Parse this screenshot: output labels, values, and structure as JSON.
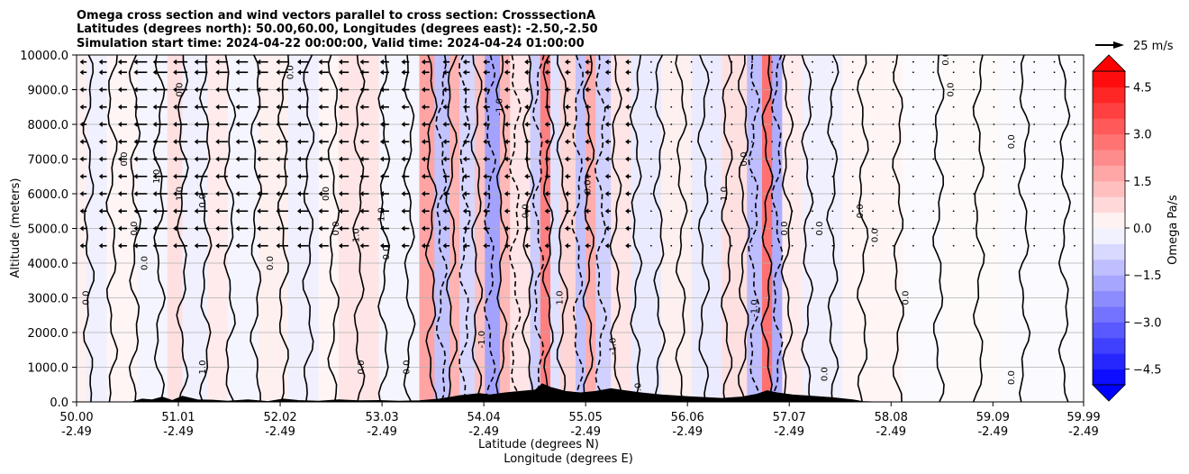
{
  "chart_data": {
    "type": "heatmap",
    "title_lines": [
      "Omega cross section and wind vectors parallel to cross section: CrosssectionA",
      "Latitudes (degrees north): 50.00,60.00, Longitudes (degrees east): -2.50,-2.50",
      "Simulation start time: 2024-04-22 00:00:00, Valid time: 2024-04-24 01:00:00"
    ],
    "xlabel_1": "Latitude (degrees N)",
    "xlabel_2": "Longitude (degrees E)",
    "ylabel": "Altitude (meters)",
    "xlim": [
      50.0,
      59.99
    ],
    "ylim": [
      0,
      10000
    ],
    "x_ticks": [
      {
        "lat": "50.00",
        "lon": "-2.49",
        "v": 50.0
      },
      {
        "lat": "51.01",
        "lon": "-2.49",
        "v": 51.01
      },
      {
        "lat": "52.02",
        "lon": "-2.49",
        "v": 52.02
      },
      {
        "lat": "53.03",
        "lon": "-2.49",
        "v": 53.03
      },
      {
        "lat": "54.04",
        "lon": "-2.49",
        "v": 54.04
      },
      {
        "lat": "55.05",
        "lon": "-2.49",
        "v": 55.05
      },
      {
        "lat": "56.06",
        "lon": "-2.49",
        "v": 56.06
      },
      {
        "lat": "57.07",
        "lon": "-2.49",
        "v": 57.07
      },
      {
        "lat": "58.08",
        "lon": "-2.49",
        "v": 58.08
      },
      {
        "lat": "59.09",
        "lon": "-2.49",
        "v": 59.09
      },
      {
        "lat": "59.99",
        "lon": "-2.49",
        "v": 59.99
      }
    ],
    "y_ticks": [
      {
        "label": "0.0",
        "v": 0
      },
      {
        "label": "1000.0",
        "v": 1000
      },
      {
        "label": "2000.0",
        "v": 2000
      },
      {
        "label": "3000.0",
        "v": 3000
      },
      {
        "label": "4000.0",
        "v": 4000
      },
      {
        "label": "5000.0",
        "v": 5000
      },
      {
        "label": "6000.0",
        "v": 6000
      },
      {
        "label": "7000.0",
        "v": 7000
      },
      {
        "label": "8000.0",
        "v": 8000
      },
      {
        "label": "9000.0",
        "v": 9000
      },
      {
        "label": "10000.0",
        "v": 10000
      }
    ],
    "grid": "horizontal",
    "colorbar": {
      "label": "Omega Pa/s",
      "range": [
        -5.0,
        5.0
      ],
      "ticks": [
        {
          "label": "4.5",
          "v": 4.5
        },
        {
          "label": "3.0",
          "v": 3.0
        },
        {
          "label": "1.5",
          "v": 1.5
        },
        {
          "label": "0.0",
          "v": 0.0
        },
        {
          "label": "−1.5",
          "v": -1.5
        },
        {
          "label": "−3.0",
          "v": -3.0
        },
        {
          "label": "−4.5",
          "v": -4.5
        }
      ],
      "extend": "both"
    },
    "reference_vector": {
      "label": "25 m/s",
      "speed": 25
    },
    "bands": [
      {
        "x0": 50.0,
        "x1": 50.1,
        "v": 0.3
      },
      {
        "x0": 50.1,
        "x1": 50.3,
        "v": -0.3
      },
      {
        "x0": 50.3,
        "x1": 50.6,
        "v": 0.2
      },
      {
        "x0": 50.6,
        "x1": 50.9,
        "v": -0.2
      },
      {
        "x0": 50.9,
        "x1": 51.05,
        "v": 0.6
      },
      {
        "x0": 51.05,
        "x1": 51.3,
        "v": -0.3
      },
      {
        "x0": 51.3,
        "x1": 51.5,
        "v": 0.4
      },
      {
        "x0": 51.5,
        "x1": 51.8,
        "v": -0.2
      },
      {
        "x0": 51.8,
        "x1": 52.1,
        "v": 0.3
      },
      {
        "x0": 52.1,
        "x1": 52.4,
        "v": -0.3
      },
      {
        "x0": 52.4,
        "x1": 52.6,
        "v": 0.2
      },
      {
        "x0": 52.6,
        "x1": 53.0,
        "v": 0.5
      },
      {
        "x0": 53.0,
        "x1": 53.4,
        "v": -0.2
      },
      {
        "x0": 53.4,
        "x1": 53.55,
        "v": 1.8
      },
      {
        "x0": 53.55,
        "x1": 53.7,
        "v": -1.2
      },
      {
        "x0": 53.7,
        "x1": 53.8,
        "v": 1.5
      },
      {
        "x0": 53.8,
        "x1": 53.95,
        "v": -0.8
      },
      {
        "x0": 53.95,
        "x1": 54.05,
        "v": 1.2
      },
      {
        "x0": 54.05,
        "x1": 54.2,
        "v": -1.8
      },
      {
        "x0": 54.2,
        "x1": 54.3,
        "v": 1.4
      },
      {
        "x0": 54.3,
        "x1": 54.5,
        "v": 0.5
      },
      {
        "x0": 54.5,
        "x1": 54.6,
        "v": -1.0
      },
      {
        "x0": 54.6,
        "x1": 54.7,
        "v": 2.5
      },
      {
        "x0": 54.7,
        "x1": 54.8,
        "v": -0.6
      },
      {
        "x0": 54.8,
        "x1": 54.95,
        "v": 0.8
      },
      {
        "x0": 54.95,
        "x1": 55.05,
        "v": -1.2
      },
      {
        "x0": 55.05,
        "x1": 55.15,
        "v": 1.6
      },
      {
        "x0": 55.15,
        "x1": 55.3,
        "v": -0.9
      },
      {
        "x0": 55.3,
        "x1": 55.5,
        "v": 0.5
      },
      {
        "x0": 55.5,
        "x1": 55.8,
        "v": -0.4
      },
      {
        "x0": 55.8,
        "x1": 56.1,
        "v": 0.3
      },
      {
        "x0": 56.1,
        "x1": 56.4,
        "v": -0.4
      },
      {
        "x0": 56.4,
        "x1": 56.65,
        "v": 0.6
      },
      {
        "x0": 56.65,
        "x1": 56.8,
        "v": -1.3
      },
      {
        "x0": 56.8,
        "x1": 56.9,
        "v": 2.8
      },
      {
        "x0": 56.9,
        "x1": 57.0,
        "v": -1.6
      },
      {
        "x0": 57.0,
        "x1": 57.2,
        "v": 0.4
      },
      {
        "x0": 57.2,
        "x1": 57.6,
        "v": -0.3
      },
      {
        "x0": 57.6,
        "x1": 58.2,
        "v": 0.2
      },
      {
        "x0": 58.2,
        "x1": 58.6,
        "v": -0.1
      },
      {
        "x0": 58.6,
        "x1": 59.2,
        "v": 0.1
      },
      {
        "x0": 59.2,
        "x1": 59.99,
        "v": -0.1
      }
    ],
    "contours": [
      {
        "x": 50.12,
        "style": "solid"
      },
      {
        "x": 50.35,
        "style": "solid"
      },
      {
        "x": 50.58,
        "style": "solid"
      },
      {
        "x": 50.82,
        "style": "solid"
      },
      {
        "x": 51.05,
        "style": "solid"
      },
      {
        "x": 51.28,
        "style": "solid"
      },
      {
        "x": 51.52,
        "style": "solid"
      },
      {
        "x": 51.78,
        "style": "solid"
      },
      {
        "x": 52.05,
        "style": "solid"
      },
      {
        "x": 52.3,
        "style": "solid"
      },
      {
        "x": 52.55,
        "style": "solid"
      },
      {
        "x": 52.8,
        "style": "solid"
      },
      {
        "x": 53.05,
        "style": "solid"
      },
      {
        "x": 53.3,
        "style": "solid"
      },
      {
        "x": 53.52,
        "style": "solid"
      },
      {
        "x": 53.62,
        "style": "dashed"
      },
      {
        "x": 53.72,
        "style": "solid"
      },
      {
        "x": 53.85,
        "style": "dashed"
      },
      {
        "x": 53.97,
        "style": "solid"
      },
      {
        "x": 54.1,
        "style": "dashed"
      },
      {
        "x": 54.22,
        "style": "solid"
      },
      {
        "x": 54.35,
        "style": "dashed"
      },
      {
        "x": 54.48,
        "style": "solid"
      },
      {
        "x": 54.58,
        "style": "dashed"
      },
      {
        "x": 54.68,
        "style": "solid"
      },
      {
        "x": 54.82,
        "style": "solid"
      },
      {
        "x": 54.97,
        "style": "dashed"
      },
      {
        "x": 55.08,
        "style": "solid"
      },
      {
        "x": 55.2,
        "style": "dashed"
      },
      {
        "x": 55.35,
        "style": "solid"
      },
      {
        "x": 55.55,
        "style": "solid"
      },
      {
        "x": 55.78,
        "style": "solid"
      },
      {
        "x": 56.0,
        "style": "solid"
      },
      {
        "x": 56.22,
        "style": "solid"
      },
      {
        "x": 56.45,
        "style": "solid"
      },
      {
        "x": 56.62,
        "style": "solid"
      },
      {
        "x": 56.72,
        "style": "dashed"
      },
      {
        "x": 56.85,
        "style": "solid"
      },
      {
        "x": 56.95,
        "style": "dashed"
      },
      {
        "x": 57.05,
        "style": "solid"
      },
      {
        "x": 57.25,
        "style": "solid"
      },
      {
        "x": 57.5,
        "style": "solid"
      },
      {
        "x": 57.8,
        "style": "solid"
      },
      {
        "x": 58.15,
        "style": "solid"
      },
      {
        "x": 58.55,
        "style": "solid"
      },
      {
        "x": 58.95,
        "style": "solid"
      },
      {
        "x": 59.4,
        "style": "solid"
      },
      {
        "x": 59.8,
        "style": "solid"
      }
    ],
    "contour_labels": [
      {
        "text": "0.0",
        "x": 50.12,
        "y": 3000
      },
      {
        "text": "0.0",
        "x": 50.5,
        "y": 7000
      },
      {
        "text": "1.0",
        "x": 50.82,
        "y": 6500
      },
      {
        "text": "0.0",
        "x": 50.6,
        "y": 5000
      },
      {
        "text": "0.0",
        "x": 50.7,
        "y": 4000
      },
      {
        "text": "1.0",
        "x": 51.05,
        "y": 6000
      },
      {
        "text": "0.0",
        "x": 51.28,
        "y": 5800
      },
      {
        "text": "0.0",
        "x": 51.05,
        "y": 9000
      },
      {
        "text": "1.0",
        "x": 51.28,
        "y": 1000
      },
      {
        "text": "0.0",
        "x": 51.95,
        "y": 4000
      },
      {
        "text": "0.0",
        "x": 52.15,
        "y": 9500
      },
      {
        "text": "0.0",
        "x": 52.5,
        "y": 6000
      },
      {
        "text": "0.0",
        "x": 52.6,
        "y": 5000
      },
      {
        "text": "1.0",
        "x": 52.8,
        "y": 4800
      },
      {
        "text": "1.0",
        "x": 53.05,
        "y": 5400
      },
      {
        "text": "0.0",
        "x": 53.1,
        "y": 4300
      },
      {
        "text": "0.0",
        "x": 53.3,
        "y": 1000
      },
      {
        "text": "-1.0",
        "x": 54.05,
        "y": 1800
      },
      {
        "text": "-1.0",
        "x": 54.22,
        "y": 8500
      },
      {
        "text": "0.0",
        "x": 54.48,
        "y": 5500
      },
      {
        "text": "1.0",
        "x": 54.82,
        "y": 3000
      },
      {
        "text": "0.0",
        "x": 55.1,
        "y": 6200
      },
      {
        "text": "-1.0",
        "x": 55.35,
        "y": 1600
      },
      {
        "text": "-1.0",
        "x": 55.6,
        "y": 300
      },
      {
        "text": "1.0",
        "x": 56.45,
        "y": 6000
      },
      {
        "text": "0.0",
        "x": 56.65,
        "y": 7000
      },
      {
        "text": "-1.0",
        "x": 56.75,
        "y": 2700
      },
      {
        "text": "0.0",
        "x": 57.05,
        "y": 5000
      },
      {
        "text": "0.0",
        "x": 57.4,
        "y": 5000
      },
      {
        "text": "0.0",
        "x": 57.8,
        "y": 5500
      },
      {
        "text": "0.0",
        "x": 57.95,
        "y": 4800
      },
      {
        "text": "0.0",
        "x": 58.25,
        "y": 3000
      },
      {
        "text": "0.0",
        "x": 58.7,
        "y": 9000
      },
      {
        "text": "0.0",
        "x": 59.3,
        "y": 7500
      },
      {
        "text": "0.0",
        "x": 59.3,
        "y": 700
      },
      {
        "text": "0.0",
        "x": 58.65,
        "y": 9900
      },
      {
        "text": "0.0",
        "x": 57.45,
        "y": 800
      },
      {
        "text": "0.0",
        "x": 52.85,
        "y": 1000
      }
    ],
    "wind_columns": [
      {
        "x": 50.1,
        "u": -3
      },
      {
        "x": 50.3,
        "u": -4
      },
      {
        "x": 50.5,
        "u": -5
      },
      {
        "x": 50.7,
        "u": -9
      },
      {
        "x": 50.9,
        "u": -10
      },
      {
        "x": 51.1,
        "u": -10
      },
      {
        "x": 51.3,
        "u": -9
      },
      {
        "x": 51.5,
        "u": -8
      },
      {
        "x": 51.7,
        "u": -8
      },
      {
        "x": 51.9,
        "u": -7
      },
      {
        "x": 52.1,
        "u": -8
      },
      {
        "x": 52.3,
        "u": -7
      },
      {
        "x": 52.5,
        "u": -6
      },
      {
        "x": 52.7,
        "u": -6
      },
      {
        "x": 52.9,
        "u": -5
      },
      {
        "x": 53.1,
        "u": -5
      },
      {
        "x": 53.3,
        "u": -4
      },
      {
        "x": 53.5,
        "u": -4
      },
      {
        "x": 53.7,
        "u": -3
      },
      {
        "x": 53.9,
        "u": -3
      },
      {
        "x": 54.1,
        "u": -3
      },
      {
        "x": 54.3,
        "u": -2
      },
      {
        "x": 54.5,
        "u": -2
      },
      {
        "x": 54.7,
        "u": -2
      },
      {
        "x": 54.9,
        "u": -2
      },
      {
        "x": 55.1,
        "u": -2
      },
      {
        "x": 55.3,
        "u": -2
      },
      {
        "x": 55.5,
        "u": -2
      },
      {
        "x": 55.7,
        "u": -1
      },
      {
        "x": 55.9,
        "u": -1
      },
      {
        "x": 56.1,
        "u": -1
      },
      {
        "x": 56.3,
        "u": -1
      },
      {
        "x": 56.5,
        "u": -1
      },
      {
        "x": 56.7,
        "u": -1
      },
      {
        "x": 56.9,
        "u": -1
      },
      {
        "x": 57.1,
        "u": -1
      },
      {
        "x": 57.3,
        "u": -1
      },
      {
        "x": 57.5,
        "u": -1
      },
      {
        "x": 57.7,
        "u": -1
      },
      {
        "x": 57.9,
        "u": -1
      },
      {
        "x": 58.1,
        "u": -1
      },
      {
        "x": 58.3,
        "u": -1
      },
      {
        "x": 58.5,
        "u": -1
      },
      {
        "x": 58.7,
        "u": -1
      },
      {
        "x": 58.9,
        "u": -1
      },
      {
        "x": 59.1,
        "u": -1
      },
      {
        "x": 59.3,
        "u": -1
      },
      {
        "x": 59.5,
        "u": -1
      },
      {
        "x": 59.7,
        "u": -1
      },
      {
        "x": 59.9,
        "u": -1
      }
    ],
    "wind_levels": [
      9800,
      9500,
      9000,
      8500,
      8000,
      7500,
      7000,
      6500,
      6000,
      5500,
      5000,
      4500
    ],
    "terrain": [
      [
        50.0,
        0
      ],
      [
        50.55,
        0
      ],
      [
        50.65,
        80
      ],
      [
        50.75,
        60
      ],
      [
        50.85,
        140
      ],
      [
        50.95,
        40
      ],
      [
        51.05,
        160
      ],
      [
        51.2,
        60
      ],
      [
        51.35,
        50
      ],
      [
        51.5,
        20
      ],
      [
        51.7,
        60
      ],
      [
        51.9,
        10
      ],
      [
        52.05,
        80
      ],
      [
        52.2,
        40
      ],
      [
        52.4,
        20
      ],
      [
        52.6,
        60
      ],
      [
        52.8,
        30
      ],
      [
        53.0,
        40
      ],
      [
        53.2,
        20
      ],
      [
        53.4,
        30
      ],
      [
        53.6,
        80
      ],
      [
        53.8,
        180
      ],
      [
        54.0,
        240
      ],
      [
        54.1,
        200
      ],
      [
        54.25,
        260
      ],
      [
        54.4,
        300
      ],
      [
        54.55,
        340
      ],
      [
        54.62,
        520
      ],
      [
        54.7,
        420
      ],
      [
        54.85,
        300
      ],
      [
        55.0,
        260
      ],
      [
        55.15,
        300
      ],
      [
        55.3,
        380
      ],
      [
        55.45,
        320
      ],
      [
        55.6,
        260
      ],
      [
        55.8,
        200
      ],
      [
        56.0,
        160
      ],
      [
        56.2,
        130
      ],
      [
        56.4,
        100
      ],
      [
        56.6,
        140
      ],
      [
        56.75,
        220
      ],
      [
        56.85,
        320
      ],
      [
        56.95,
        260
      ],
      [
        57.1,
        200
      ],
      [
        57.3,
        160
      ],
      [
        57.5,
        120
      ],
      [
        57.7,
        60
      ],
      [
        57.8,
        10
      ],
      [
        57.9,
        0
      ],
      [
        59.99,
        0
      ]
    ]
  }
}
